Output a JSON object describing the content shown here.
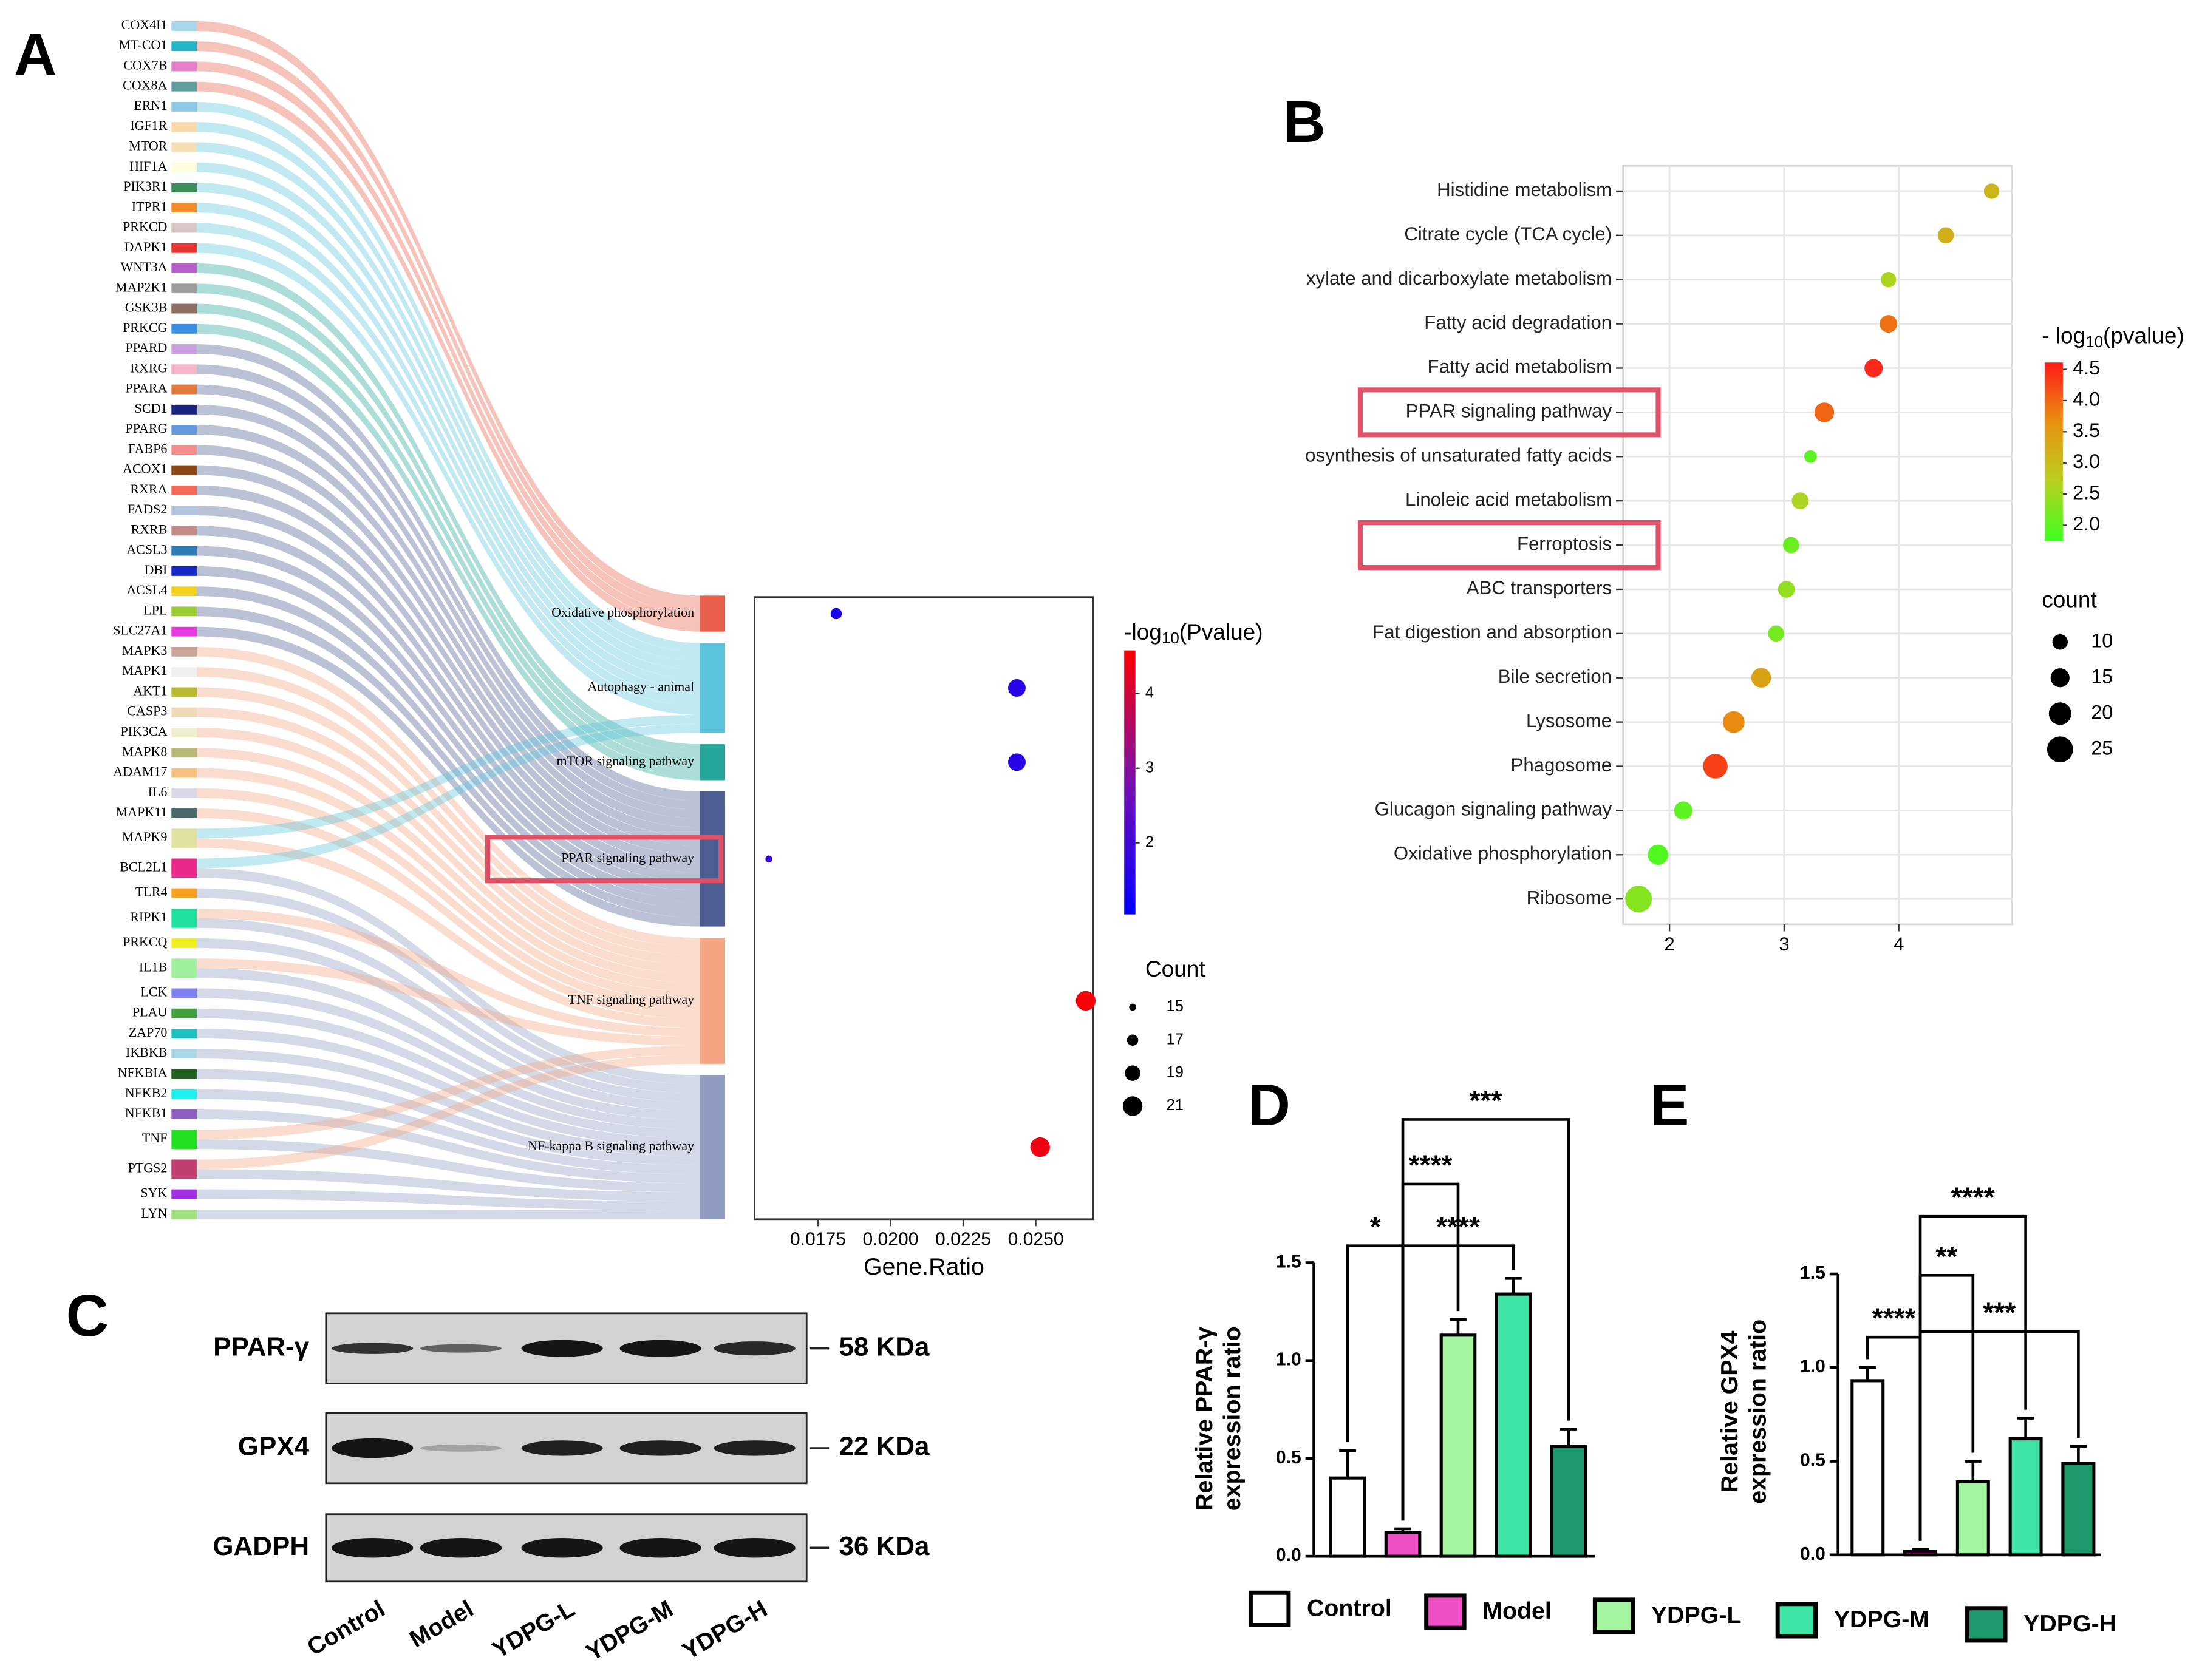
{
  "panel_labels": [
    "A",
    "B",
    "C",
    "D",
    "E"
  ],
  "blot": {
    "proteins": [
      {
        "name": "PPAR-γ",
        "size": "58 KDa"
      },
      {
        "name": "GPX4",
        "size": "22 KDa"
      },
      {
        "name": "GADPH",
        "size": "36 KDa"
      }
    ],
    "lanes": [
      "Control",
      "Model",
      "YDPG-L",
      "YDPG-M",
      "YDPG-H"
    ]
  },
  "chart_data": [
    {
      "type": "sankey",
      "genes": [
        {
          "name": "COX4I1",
          "color": "#a8d8ea"
        },
        {
          "name": "MT-CO1",
          "color": "#26b5c8"
        },
        {
          "name": "COX7B",
          "color": "#e57fc7"
        },
        {
          "name": "COX8A",
          "color": "#5e9e9e"
        },
        {
          "name": "ERN1",
          "color": "#8ecae6"
        },
        {
          "name": "IGF1R",
          "color": "#f7d8a8"
        },
        {
          "name": "MTOR",
          "color": "#f5deb3"
        },
        {
          "name": "HIF1A",
          "color": "#fffde0"
        },
        {
          "name": "PIK3R1",
          "color": "#3c8d5a"
        },
        {
          "name": "ITPR1",
          "color": "#f28c28"
        },
        {
          "name": "PRKCD",
          "color": "#d8c8c8"
        },
        {
          "name": "DAPK1",
          "color": "#e3342f"
        },
        {
          "name": "WNT3A",
          "color": "#b85ec9"
        },
        {
          "name": "MAP2K1",
          "color": "#9e9e9e"
        },
        {
          "name": "GSK3B",
          "color": "#8d6e63"
        },
        {
          "name": "PRKCG",
          "color": "#3a8ee6"
        },
        {
          "name": "PPARD",
          "color": "#c9a0dc"
        },
        {
          "name": "RXRG",
          "color": "#f8b4c8"
        },
        {
          "name": "PPARA",
          "color": "#e07a3a"
        },
        {
          "name": "SCD1",
          "color": "#1a237e"
        },
        {
          "name": "PPARG",
          "color": "#6699dd"
        },
        {
          "name": "FABP6",
          "color": "#f48b8b"
        },
        {
          "name": "ACOX1",
          "color": "#8b4513"
        },
        {
          "name": "RXRA",
          "color": "#f26b5b"
        },
        {
          "name": "FADS2",
          "color": "#b0c4de"
        },
        {
          "name": "RXRB",
          "color": "#c48b8b"
        },
        {
          "name": "ACSL3",
          "color": "#2e7cb8"
        },
        {
          "name": "DBI",
          "color": "#1428c8"
        },
        {
          "name": "ACSL4",
          "color": "#f5d020"
        },
        {
          "name": "LPL",
          "color": "#9acd32"
        },
        {
          "name": "SLC27A1",
          "color": "#e83ae0"
        },
        {
          "name": "MAPK3",
          "color": "#c9a79a"
        },
        {
          "name": "MAPK1",
          "color": "#f0f0f0"
        },
        {
          "name": "AKT1",
          "color": "#b8b832"
        },
        {
          "name": "CASP3",
          "color": "#f0d8b8"
        },
        {
          "name": "PIK3CA",
          "color": "#f0f0d0"
        },
        {
          "name": "MAPK8",
          "color": "#b8b878"
        },
        {
          "name": "ADAM17",
          "color": "#f8c080"
        },
        {
          "name": "IL6",
          "color": "#d8d8e8"
        },
        {
          "name": "MAPK11",
          "color": "#4a6a6a"
        },
        {
          "name": "MAPK9",
          "color": "#e0e0a0"
        },
        {
          "name": "BCL2L1",
          "color": "#e8288a"
        },
        {
          "name": "TLR4",
          "color": "#f8a020"
        },
        {
          "name": "RIPK1",
          "color": "#20e0a0"
        },
        {
          "name": "PRKCQ",
          "color": "#f0f020"
        },
        {
          "name": "IL1B",
          "color": "#a0f0a0"
        },
        {
          "name": "LCK",
          "color": "#8080f0"
        },
        {
          "name": "PLAU",
          "color": "#40a040"
        },
        {
          "name": "ZAP70",
          "color": "#20c0c0"
        },
        {
          "name": "IKBKB",
          "color": "#a8d8e8"
        },
        {
          "name": "NFKBIA",
          "color": "#206020"
        },
        {
          "name": "NFKB2",
          "color": "#20f0f0"
        },
        {
          "name": "NFKB1",
          "color": "#9060c0"
        },
        {
          "name": "TNF",
          "color": "#20e020"
        },
        {
          "name": "PTGS2",
          "color": "#c04070"
        },
        {
          "name": "SYK",
          "color": "#a030e0"
        },
        {
          "name": "LYN",
          "color": "#a0e080"
        }
      ],
      "pathways": [
        {
          "name": "Oxidative phosphorylation",
          "color": "#e8604c",
          "members": [
            "COX4I1",
            "MT-CO1",
            "COX7B",
            "COX8A"
          ]
        },
        {
          "name": "Autophagy - animal",
          "color": "#5bc4dc",
          "members": [
            "ERN1",
            "IGF1R",
            "MTOR",
            "HIF1A",
            "PIK3R1",
            "ITPR1",
            "PRKCD",
            "DAPK1",
            "MAPK9",
            "BCL2L1"
          ]
        },
        {
          "name": "mTOR signaling pathway",
          "color": "#26a69a",
          "members": [
            "WNT3A",
            "MAP2K1",
            "GSK3B",
            "PRKCG"
          ]
        },
        {
          "name": "PPAR signaling pathway",
          "color": "#4e5f94",
          "members": [
            "PPARD",
            "RXRG",
            "PPARA",
            "SCD1",
            "PPARG",
            "FABP6",
            "ACOX1",
            "RXRA",
            "FADS2",
            "RXRB",
            "ACSL3",
            "DBI",
            "ACSL4",
            "LPL",
            "SLC27A1"
          ]
        },
        {
          "name": "TNF signaling pathway",
          "color": "#f4a582",
          "members": [
            "MAPK3",
            "MAPK1",
            "AKT1",
            "CASP3",
            "PIK3CA",
            "MAPK8",
            "ADAM17",
            "IL6",
            "MAPK11",
            "MAPK9",
            "RIPK1",
            "IL1B",
            "TNF",
            "PTGS2"
          ]
        },
        {
          "name": "NF-kappa B signaling pathway",
          "color": "#8f9cbf",
          "members": [
            "BCL2L1",
            "TLR4",
            "RIPK1",
            "PRKCQ",
            "IL1B",
            "LCK",
            "PLAU",
            "ZAP70",
            "IKBKB",
            "NFKBIA",
            "NFKB2",
            "NFKB1",
            "TNF",
            "PTGS2",
            "SYK",
            "LYN"
          ]
        }
      ]
    },
    {
      "type": "dot",
      "values": [
        0.01813,
        0.02435,
        0.02435,
        0.01581,
        0.02672,
        0.02515
      ],
      "log_p": [
        1.4,
        1.6,
        1.6,
        1.9,
        4.5,
        4.4
      ],
      "count": [
        17,
        20,
        20,
        15,
        21,
        21
      ],
      "x_label": "Gene.Ratio",
      "xlim": [
        0.01532,
        0.02698
      ],
      "xticks": [
        0.0175,
        {
          "value": 0.02,
          "label": "0.0200"
        },
        0.0225,
        {
          "value": 0.025,
          "label": "0.0250"
        }
      ],
      "color_title": {
        "prefix": "-log",
        "sub": "10",
        "suffix": "(Pvalue)"
      },
      "color_lim": [
        1.04,
        4.58
      ],
      "color_ticks": [
        2,
        3,
        4
      ],
      "colormap": [
        "#0000ff",
        "#7a0fb0",
        "#ff0000"
      ],
      "size_title": "Count",
      "size_ticks": [
        15,
        17,
        19,
        21
      ]
    },
    {
      "type": "dot",
      "categories": [
        "Histidine metabolism",
        "Citrate cycle (TCA cycle)",
        "xylate and dicarboxylate metabolism",
        "Fatty acid degradation",
        "Fatty acid metabolism",
        "PPAR signaling pathway",
        "osynthesis of unsaturated fatty acids",
        "Linoleic acid metabolism",
        "Ferroptosis",
        "ABC transporters",
        "Fat digestion and absorption",
        "Bile secretion",
        "Lysosome",
        "Phagosome",
        "Glucagon signaling pathway",
        "Oxidative phosphorylation",
        "Ribosome"
      ],
      "values": [
        4.81,
        4.41,
        3.91,
        3.91,
        3.78,
        3.35,
        3.23,
        3.14,
        3.06,
        3.02,
        2.93,
        2.8,
        2.56,
        2.4,
        2.12,
        1.9,
        1.73
      ],
      "log_p": [
        3.1,
        3.2,
        2.6,
        3.9,
        4.5,
        4.0,
        2.0,
        2.6,
        2.1,
        2.4,
        2.2,
        3.4,
        3.7,
        4.3,
        2.0,
        1.9,
        2.3
      ],
      "count": [
        10,
        11,
        10,
        13,
        14,
        16,
        6,
        12,
        11,
        12,
        11,
        16,
        19,
        23,
        14,
        17,
        26
      ],
      "xlim": [
        1.595,
        4.99
      ],
      "xticks": [
        2,
        3,
        4
      ],
      "grid": true,
      "highlight": [
        "PPAR signaling pathway",
        "Ferroptosis"
      ],
      "color_title": {
        "prefix": "- log",
        "sub": "10",
        "suffix": "(pvalue)"
      },
      "color_lim": [
        1.75,
        4.61
      ],
      "color_ticks": [
        {
          "value": 2,
          "label": "2.0"
        },
        2.5,
        {
          "value": 3,
          "label": "3.0"
        },
        3.5,
        {
          "value": 4,
          "label": "4.0"
        },
        4.5
      ],
      "colormap": [
        "#3cff20",
        "#b8d020",
        "#e89010",
        "#ff1a1a"
      ],
      "size_title": "count",
      "size_ticks": [
        10,
        15,
        20,
        25
      ]
    },
    {
      "type": "bar",
      "categories": [
        "Control",
        "Model",
        "YDPG-L",
        "YDPG-M",
        "YDPG-H"
      ],
      "colors": [
        "#ffffff",
        "#ee4fc4",
        "#a4f5a0",
        "#3ee3a6",
        "#1c9a6c"
      ],
      "values": [
        0.4,
        0.12,
        1.13,
        1.34,
        0.56
      ],
      "errors": [
        0.14,
        0.02,
        0.08,
        0.08,
        0.09
      ],
      "y_label": [
        "Relative PPAR-γ",
        "expression ratio"
      ],
      "ylim": [
        0,
        1.5
      ],
      "yticks": [
        {
          "value": 0,
          "label": "0.0"
        },
        0.5,
        {
          "value": 1,
          "label": "1.0"
        },
        1.5
      ],
      "brackets": [
        {
          "pair": [
            "Control",
            "Model"
          ],
          "label": "*"
        },
        {
          "pair": [
            "Model",
            "YDPG-L"
          ],
          "label": "****"
        },
        {
          "pair": [
            "Model",
            "YDPG-M"
          ],
          "label": "****"
        },
        {
          "pair": [
            "Model",
            "YDPG-H"
          ],
          "label": "***"
        }
      ]
    },
    {
      "type": "bar",
      "colors": [
        "#ffffff",
        "#ee4fc4",
        "#a4f5a0",
        "#3ee3a6",
        "#1c9a6c"
      ],
      "values": [
        0.93,
        0.02,
        0.39,
        0.62,
        0.49
      ],
      "errors": [
        0.07,
        0.01,
        0.11,
        0.11,
        0.09
      ],
      "y_label": [
        "Relative GPX4",
        "expression ratio"
      ],
      "ylim": [
        0,
        1.5
      ],
      "yticks": [
        {
          "value": 0,
          "label": "0.0"
        },
        0.5,
        {
          "value": 1,
          "label": "1.0"
        },
        1.5
      ],
      "brackets": [
        {
          "pair": [
            "Control",
            "Model"
          ],
          "label": "****"
        },
        {
          "pair": [
            "Model",
            "YDPG-L"
          ],
          "label": "**"
        },
        {
          "pair": [
            "Model",
            "YDPG-M"
          ],
          "label": "****"
        },
        {
          "pair": [
            "Model",
            "YDPG-H"
          ],
          "label": "***"
        }
      ]
    }
  ]
}
